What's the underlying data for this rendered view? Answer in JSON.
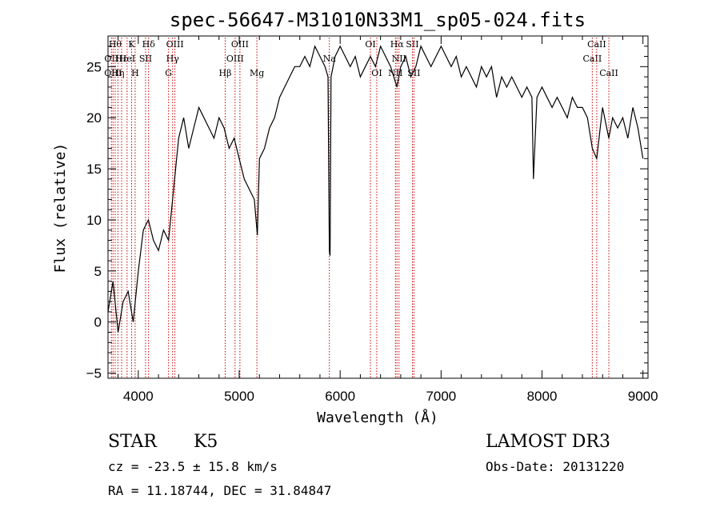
{
  "chart_data": {
    "type": "line",
    "title": "spec-56647-M31010N33M1_sp05-024.fits",
    "xlabel": "Wavelength (Å)",
    "ylabel": "Flux (relative)",
    "xlim": [
      3700,
      9050
    ],
    "ylim": [
      -5.5,
      28
    ],
    "xticks": [
      4000,
      5000,
      6000,
      7000,
      8000,
      9000
    ],
    "yticks": [
      -5,
      0,
      5,
      10,
      15,
      20,
      25
    ],
    "grid": false,
    "series": [
      {
        "color": "#000000",
        "x": [
          3700,
          3750,
          3800,
          3850,
          3900,
          3950,
          4000,
          4050,
          4100,
          4150,
          4200,
          4250,
          4300,
          4350,
          4400,
          4450,
          4500,
          4550,
          4600,
          4650,
          4700,
          4750,
          4800,
          4850,
          4900,
          4950,
          5000,
          5050,
          5100,
          5150,
          5180,
          5200,
          5250,
          5300,
          5350,
          5400,
          5450,
          5500,
          5550,
          5600,
          5650,
          5700,
          5750,
          5800,
          5850,
          5880,
          5893,
          5900,
          5910,
          5950,
          6000,
          6050,
          6100,
          6150,
          6200,
          6250,
          6300,
          6350,
          6400,
          6450,
          6500,
          6563,
          6600,
          6650,
          6700,
          6750,
          6800,
          6850,
          6900,
          6950,
          7000,
          7050,
          7100,
          7150,
          7200,
          7250,
          7300,
          7350,
          7400,
          7450,
          7500,
          7550,
          7600,
          7650,
          7700,
          7750,
          7800,
          7850,
          7900,
          7915,
          7950,
          8000,
          8050,
          8100,
          8150,
          8200,
          8250,
          8300,
          8350,
          8400,
          8450,
          8498,
          8542,
          8600,
          8662,
          8700,
          8750,
          8800,
          8850,
          8900,
          8950,
          9000
        ],
        "y": [
          1,
          4,
          -1,
          2,
          3,
          0,
          5,
          9,
          10,
          8,
          7,
          9,
          8,
          13,
          18,
          20,
          17,
          19,
          21,
          20,
          19,
          18,
          20,
          19,
          17,
          18,
          16,
          14,
          13,
          12,
          8.5,
          16,
          17,
          19,
          20,
          22,
          23,
          24,
          25,
          25,
          26,
          25,
          27,
          26,
          25,
          24,
          7,
          6.5,
          24,
          26,
          27,
          26,
          25,
          26,
          24,
          25,
          26,
          25,
          27,
          26,
          25,
          23,
          25,
          26,
          24,
          25,
          27,
          26,
          25,
          26,
          27,
          26,
          25,
          26,
          24,
          25,
          24,
          23,
          25,
          24,
          25,
          22,
          24,
          23,
          24,
          23,
          22,
          23,
          22,
          14,
          22,
          23,
          22,
          21,
          22,
          21,
          20,
          22,
          21,
          21,
          20,
          17,
          16,
          21,
          18,
          20,
          19,
          20,
          18,
          21,
          19,
          16
        ]
      }
    ],
    "lines": [
      {
        "x": 3734,
        "label": "OII",
        "row": 1
      },
      {
        "x": 3750,
        "label": "OIII",
        "row": 2
      },
      {
        "x": 3771,
        "label": "Hθ",
        "row": 0
      },
      {
        "x": 3798,
        "label": "Hη",
        "row": 2
      },
      {
        "x": 3835,
        "label": "Hε",
        "row": 1
      },
      {
        "x": 3889,
        "label": "HeI",
        "row": 1
      },
      {
        "x": 3934,
        "label": "K",
        "row": 0
      },
      {
        "x": 3969,
        "label": "H",
        "row": 2
      },
      {
        "x": 4072,
        "label": "SII",
        "row": 1
      },
      {
        "x": 4102,
        "label": "Hδ",
        "row": 0
      },
      {
        "x": 4300,
        "label": "G",
        "row": 2
      },
      {
        "x": 4340,
        "label": "Hγ",
        "row": 1
      },
      {
        "x": 4363,
        "label": "OIII",
        "row": 0
      },
      {
        "x": 4861,
        "label": "Hβ",
        "row": 2
      },
      {
        "x": 4959,
        "label": "OIII",
        "row": 1
      },
      {
        "x": 5007,
        "label": "OIII",
        "row": 0
      },
      {
        "x": 5175,
        "label": "Mg",
        "row": 2
      },
      {
        "x": 5893,
        "label": "Na",
        "row": 1
      },
      {
        "x": 6300,
        "label": "OI",
        "row": 0
      },
      {
        "x": 6363,
        "label": "OI",
        "row": 2
      },
      {
        "x": 6548,
        "label": "NII",
        "row": 2
      },
      {
        "x": 6563,
        "label": "Hα",
        "row": 0
      },
      {
        "x": 6583,
        "label": "NII",
        "row": 1
      },
      {
        "x": 6716,
        "label": "SII",
        "row": 0
      },
      {
        "x": 6731,
        "label": "SII",
        "row": 2
      },
      {
        "x": 8498,
        "label": "CaII",
        "row": 1
      },
      {
        "x": 8542,
        "label": "CaII",
        "row": 0
      },
      {
        "x": 8662,
        "label": "CaII",
        "row": 2
      }
    ],
    "line_color": "#cc0000"
  },
  "info": {
    "class": "STAR",
    "subclass": "K5",
    "survey": "LAMOST DR3",
    "redshift": "cz = -23.5 ± 15.8 km/s",
    "obs_date": "Obs-Date: 20131220",
    "coords": "RA =  11.18744, DEC =  31.84847"
  }
}
